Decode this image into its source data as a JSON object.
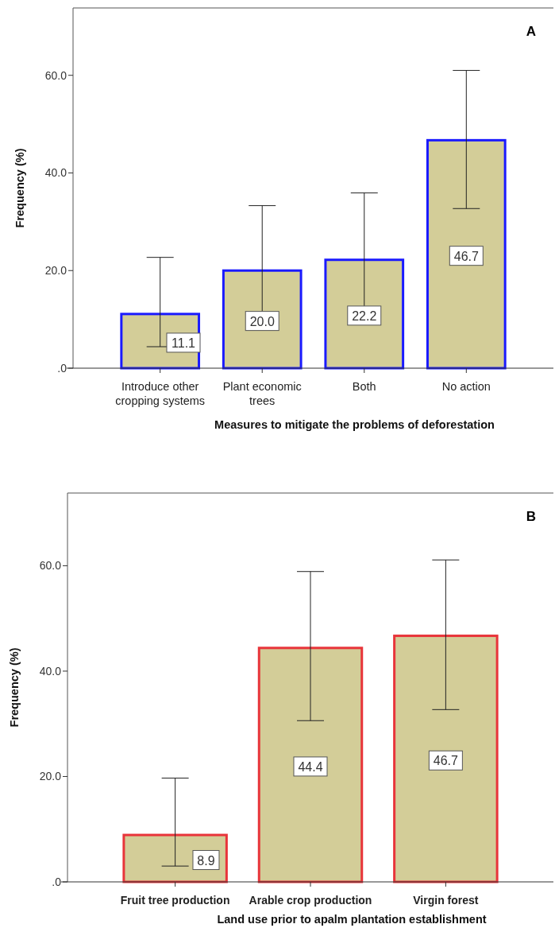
{
  "chart_data": [
    {
      "type": "bar",
      "categories": [
        "Introduce other cropping systems",
        "Plant economic trees",
        "Both",
        "No action"
      ],
      "values": [
        11.1,
        20.0,
        22.2,
        46.7
      ],
      "color": "#d3cd98",
      "errors": [
        [
          4.4,
          22.7
        ],
        [
          10.4,
          33.3
        ],
        [
          12.0,
          35.9
        ],
        [
          32.7,
          61.0
        ]
      ],
      "value_labels": [
        "11.1",
        "20.0",
        "22.2",
        "46.7"
      ],
      "xlabel": "Measures to mitigate the problems of deforestation",
      "ylabel": "Frequency (%)",
      "ylim": [
        0,
        73.8
      ],
      "yticks": [
        {
          "value": 0,
          "label": ".0"
        },
        {
          "value": 20,
          "label": "20.0"
        },
        {
          "value": 40,
          "label": "40.0"
        },
        {
          "value": 60,
          "label": "60.0"
        }
      ],
      "annotations": [
        "A"
      ]
    },
    {
      "type": "bar",
      "categories": [
        "Fruit tree production",
        "Arable crop production",
        "Virgin forest"
      ],
      "values": [
        8.9,
        44.4,
        46.7
      ],
      "color": "#d3cd98",
      "errors": [
        [
          3.0,
          19.7
        ],
        [
          30.6,
          58.9
        ],
        [
          32.7,
          61.1
        ]
      ],
      "value_labels": [
        "8.9",
        "44.4",
        "46.7"
      ],
      "xlabel": "Land use prior to apalm plantation establishment",
      "ylabel": "Frequency (%)",
      "ylim": [
        0,
        73.8
      ],
      "yticks": [
        {
          "value": 0,
          "label": ".0"
        },
        {
          "value": 20,
          "label": "20.0"
        },
        {
          "value": 40,
          "label": "40.0"
        },
        {
          "value": 60,
          "label": "60.0"
        }
      ],
      "annotations": [
        "B"
      ]
    }
  ]
}
